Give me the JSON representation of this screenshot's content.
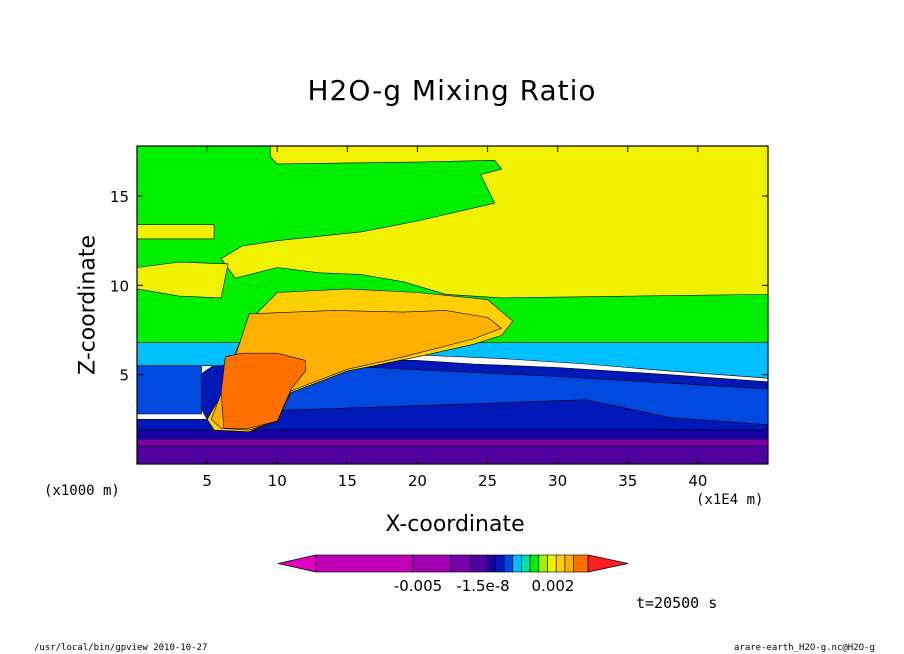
{
  "chart_data": {
    "type": "heatmap",
    "title": "H2O-g Mixing Ratio",
    "xlabel": "X-coordinate",
    "ylabel": "Z-coordinate",
    "x_unit_label": "(x1000 m)",
    "x_scale_label": "(x1E4 m)",
    "xlim": [
      0,
      45
    ],
    "ylim": [
      0,
      17.8
    ],
    "x_ticks": [
      5,
      10,
      15,
      20,
      25,
      30,
      35,
      40
    ],
    "y_ticks": [
      5,
      10,
      15
    ],
    "colorbar": {
      "colors": [
        "#e000c0",
        "#c000b8",
        "#a000b0",
        "#7800a8",
        "#5000a0",
        "#1800a8",
        "#0018b8",
        "#0048e0",
        "#00c0ff",
        "#00e0a0",
        "#00f000",
        "#a0f000",
        "#f0f000",
        "#ffd000",
        "#ffb000",
        "#ff7000",
        "#ff1e1e"
      ],
      "labels": [
        "-0.005",
        "-1.5e-8",
        "0.002"
      ]
    },
    "regions": [
      {
        "name": "dark-purple",
        "color": "#7800a8",
        "points": [
          [
            0,
            0
          ],
          [
            45,
            0
          ],
          [
            45,
            1.6
          ],
          [
            0,
            1.6
          ]
        ]
      },
      {
        "name": "violet",
        "color": "#5000a0",
        "points": [
          [
            0,
            0
          ],
          [
            45,
            0
          ],
          [
            45,
            1.0
          ],
          [
            0,
            1.0
          ]
        ]
      },
      {
        "name": "deep-blue",
        "color": "#1800a8",
        "points": [
          [
            0,
            1.4
          ],
          [
            45,
            1.4
          ],
          [
            45,
            2.2
          ],
          [
            0,
            2.2
          ]
        ]
      },
      {
        "name": "blue",
        "color": "#0018b8",
        "points": [
          [
            0,
            1.9
          ],
          [
            45,
            1.9
          ],
          [
            45,
            4.6
          ],
          [
            38,
            5.0
          ],
          [
            30,
            5.4
          ],
          [
            24,
            5.6
          ],
          [
            20,
            5.8
          ],
          [
            14,
            5.9
          ],
          [
            10,
            6.2
          ],
          [
            6,
            5.8
          ],
          [
            4.5,
            5.0
          ],
          [
            4.5,
            3.2
          ],
          [
            5.0,
            2.5
          ],
          [
            0,
            2.5
          ]
        ]
      },
      {
        "name": "sky-blue",
        "color": "#0048e0",
        "points": [
          [
            0,
            2.8
          ],
          [
            4.6,
            2.8
          ],
          [
            4.6,
            5.5
          ],
          [
            0,
            5.5
          ]
        ]
      },
      {
        "name": "light-blue",
        "color": "#0048e0",
        "points": [
          [
            10,
            3.0
          ],
          [
            25,
            3.4
          ],
          [
            32,
            3.6
          ],
          [
            38,
            2.6
          ],
          [
            45,
            2.2
          ],
          [
            45,
            4.2
          ],
          [
            30,
            4.9
          ],
          [
            22,
            5.2
          ],
          [
            14,
            5.5
          ],
          [
            10,
            5.6
          ]
        ]
      },
      {
        "name": "cyan",
        "color": "#00c0ff",
        "points": [
          [
            0,
            5.5
          ],
          [
            6,
            5.5
          ],
          [
            10,
            6.4
          ],
          [
            20,
            6.1
          ],
          [
            26,
            5.9
          ],
          [
            32,
            5.6
          ],
          [
            38,
            5.2
          ],
          [
            45,
            4.8
          ],
          [
            45,
            6.8
          ],
          [
            0,
            6.8
          ]
        ]
      },
      {
        "name": "green",
        "color": "#00f000",
        "points": [
          [
            0,
            6.8
          ],
          [
            45,
            6.8
          ],
          [
            45,
            17.8
          ],
          [
            0,
            17.8
          ]
        ]
      },
      {
        "name": "yellow-top",
        "color": "#f0f000",
        "points": [
          [
            9.5,
            17.8
          ],
          [
            45,
            17.8
          ],
          [
            45,
            9.5
          ],
          [
            26,
            9.3
          ],
          [
            22,
            9.5
          ],
          [
            19,
            10.2
          ],
          [
            16,
            10.6
          ],
          [
            13,
            10.7
          ],
          [
            10,
            11.0
          ],
          [
            7,
            10.4
          ],
          [
            6,
            11.5
          ],
          [
            7.5,
            12.2
          ],
          [
            10,
            12.5
          ],
          [
            16,
            13.0
          ],
          [
            20,
            13.6
          ],
          [
            25.5,
            14.6
          ],
          [
            24.5,
            16.2
          ],
          [
            26,
            16.5
          ],
          [
            25.5,
            17.0
          ],
          [
            20,
            16.9
          ],
          [
            10,
            16.8
          ],
          [
            9.5,
            17.2
          ]
        ]
      },
      {
        "name": "yellow-band",
        "color": "#f0f000",
        "points": [
          [
            0,
            12.6
          ],
          [
            5.5,
            12.6
          ],
          [
            5.5,
            13.4
          ],
          [
            0,
            13.4
          ]
        ]
      },
      {
        "name": "yellow-left",
        "color": "#f0f000",
        "points": [
          [
            0,
            9.8
          ],
          [
            3,
            9.4
          ],
          [
            6,
            9.3
          ],
          [
            6.5,
            11.2
          ],
          [
            3,
            11.3
          ],
          [
            0,
            11.0
          ]
        ]
      },
      {
        "name": "gold",
        "color": "#ffd000",
        "points": [
          [
            7,
            6.2
          ],
          [
            8,
            8.0
          ],
          [
            10,
            9.6
          ],
          [
            15,
            9.8
          ],
          [
            20,
            9.6
          ],
          [
            25,
            9.2
          ],
          [
            26.8,
            8.0
          ],
          [
            26,
            7.2
          ],
          [
            24,
            6.7
          ],
          [
            20,
            6.0
          ],
          [
            15,
            5.2
          ],
          [
            11,
            4.0
          ],
          [
            10,
            2.5
          ],
          [
            8,
            1.8
          ],
          [
            5.5,
            1.9
          ],
          [
            5.0,
            2.5
          ],
          [
            6.5,
            4.5
          ]
        ]
      },
      {
        "name": "orange-light",
        "color": "#ffb000",
        "points": [
          [
            7,
            6.0
          ],
          [
            8,
            8.4
          ],
          [
            14,
            8.6
          ],
          [
            19,
            8.5
          ],
          [
            22,
            8.6
          ],
          [
            25,
            8.2
          ],
          [
            26,
            7.6
          ],
          [
            24,
            7.0
          ],
          [
            19,
            6.0
          ],
          [
            15,
            5.3
          ],
          [
            11,
            4.1
          ],
          [
            10,
            2.4
          ],
          [
            8,
            1.9
          ],
          [
            6.0,
            2.0
          ],
          [
            5.3,
            2.5
          ]
        ]
      },
      {
        "name": "orange",
        "color": "#ff7000",
        "points": [
          [
            6.2,
            2.0
          ],
          [
            6.0,
            4.0
          ],
          [
            6.3,
            6.0
          ],
          [
            7.5,
            6.2
          ],
          [
            10,
            6.2
          ],
          [
            12,
            5.8
          ],
          [
            12,
            5.2
          ],
          [
            11,
            4.2
          ],
          [
            10,
            2.4
          ],
          [
            8,
            2.0
          ]
        ]
      }
    ]
  },
  "time_label": "t=20500 s",
  "footer_left": "/usr/local/bin/gpview  2010-10-27",
  "footer_right": "arare-earth_H2O-g.nc@H2O-g"
}
